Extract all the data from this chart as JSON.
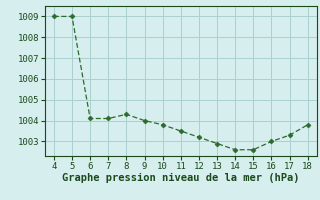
{
  "x": [
    4,
    5,
    6,
    7,
    8,
    9,
    10,
    11,
    12,
    13,
    14,
    15,
    16,
    17,
    18
  ],
  "y": [
    1009.0,
    1009.0,
    1004.1,
    1004.1,
    1004.3,
    1004.0,
    1003.8,
    1003.5,
    1003.2,
    1002.9,
    1002.6,
    1002.6,
    1003.0,
    1003.3,
    1003.8
  ],
  "line_color": "#2d6a2d",
  "marker": "D",
  "marker_size": 2.5,
  "bg_color": "#d6eeee",
  "grid_color": "#aad0d0",
  "xlabel": "Graphe pression niveau de la mer (hPa)",
  "xlabel_color": "#1a4a1a",
  "xlabel_fontsize": 7.5,
  "tick_color": "#1a4a1a",
  "xlim": [
    3.5,
    18.5
  ],
  "ylim": [
    1002.3,
    1009.5
  ],
  "xticks": [
    4,
    5,
    6,
    7,
    8,
    9,
    10,
    11,
    12,
    13,
    14,
    15,
    16,
    17,
    18
  ],
  "yticks": [
    1003,
    1004,
    1005,
    1006,
    1007,
    1008,
    1009
  ]
}
